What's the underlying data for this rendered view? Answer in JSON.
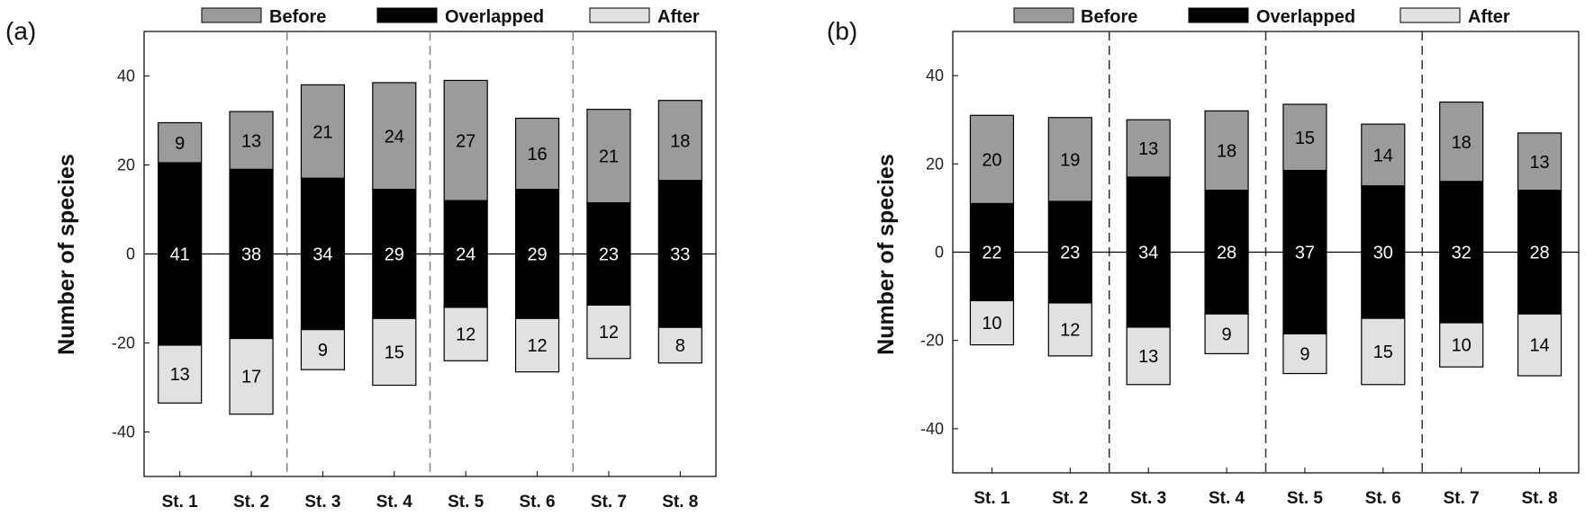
{
  "legend": {
    "before": "Before",
    "overlapped": "Overlapped",
    "after": "After"
  },
  "colors": {
    "before": "#9b9b9b",
    "overlapped": "#000000",
    "after": "#e1e1e1"
  },
  "chart_data": [
    {
      "type": "bar",
      "panel_label": "(a)",
      "ylabel": "Number of species",
      "xlabel": "",
      "ylim": [
        -50,
        50
      ],
      "yticks": [
        40,
        20,
        0,
        -20,
        -40
      ],
      "categories": [
        "St. 1",
        "St. 2",
        "St. 3",
        "St. 4",
        "St. 5",
        "St. 6",
        "St. 7",
        "St. 8"
      ],
      "series": [
        {
          "name": "Before",
          "values": [
            9,
            13,
            21,
            24,
            27,
            16,
            21,
            18
          ]
        },
        {
          "name": "Overlapped",
          "values": [
            41,
            38,
            34,
            29,
            24,
            29,
            23,
            33
          ]
        },
        {
          "name": "After",
          "values": [
            13,
            17,
            9,
            15,
            12,
            12,
            12,
            8
          ]
        }
      ],
      "grid": false,
      "legend_position": "top"
    },
    {
      "type": "bar",
      "panel_label": "(b)",
      "ylabel": "Number of species",
      "xlabel": "",
      "ylim": [
        -50,
        50
      ],
      "yticks": [
        40,
        20,
        0,
        -20,
        -40
      ],
      "categories": [
        "St. 1",
        "St. 2",
        "St. 3",
        "St. 4",
        "St. 5",
        "St. 6",
        "St. 7",
        "St. 8"
      ],
      "series": [
        {
          "name": "Before",
          "values": [
            20,
            19,
            13,
            18,
            15,
            14,
            18,
            13
          ]
        },
        {
          "name": "Overlapped",
          "values": [
            22,
            23,
            34,
            28,
            37,
            30,
            32,
            28
          ]
        },
        {
          "name": "After",
          "values": [
            10,
            12,
            13,
            9,
            9,
            15,
            10,
            14
          ]
        }
      ],
      "grid": false,
      "legend_position": "top"
    }
  ]
}
